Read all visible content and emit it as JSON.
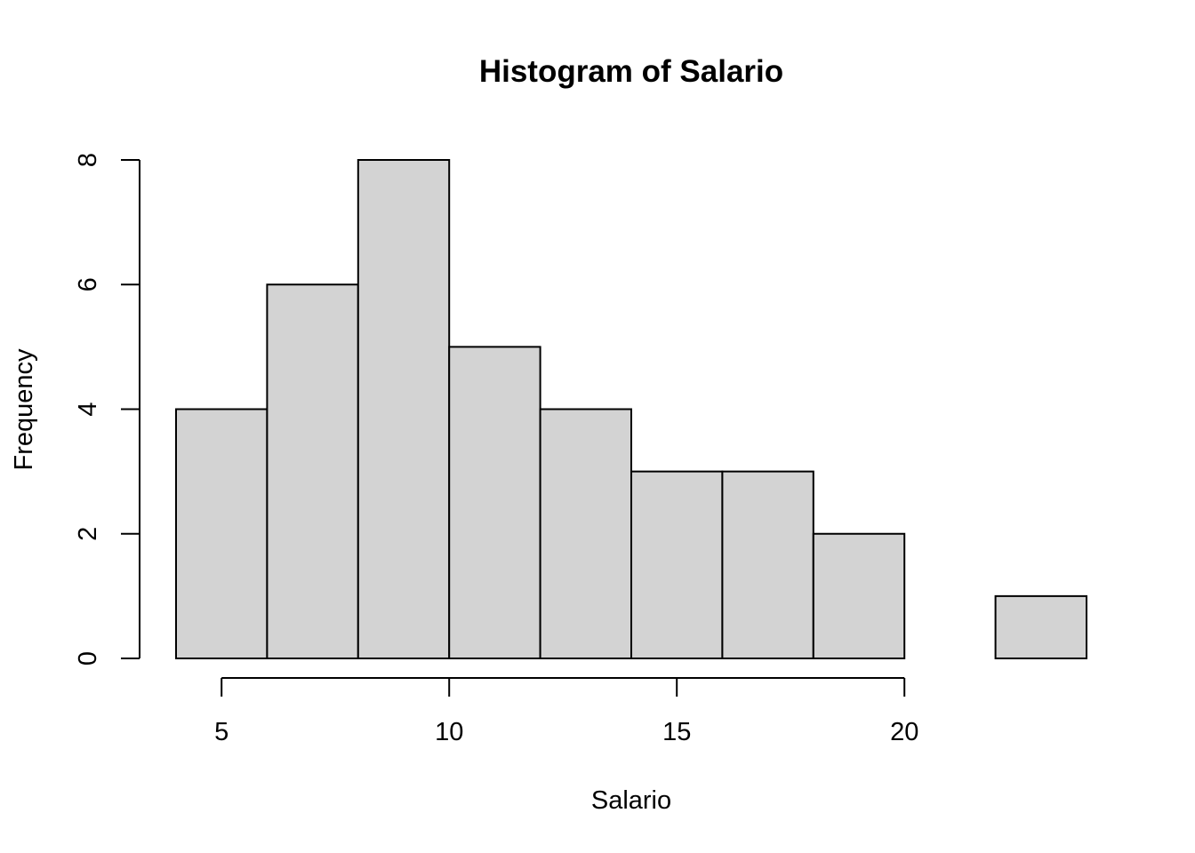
{
  "chart_data": {
    "type": "bar",
    "subtype": "histogram",
    "title": "Histogram of Salario",
    "xlabel": "Salario",
    "ylabel": "Frequency",
    "bins": [
      {
        "start": 4,
        "end": 6,
        "count": 4
      },
      {
        "start": 6,
        "end": 8,
        "count": 6
      },
      {
        "start": 8,
        "end": 10,
        "count": 8
      },
      {
        "start": 10,
        "end": 12,
        "count": 5
      },
      {
        "start": 12,
        "end": 14,
        "count": 4
      },
      {
        "start": 14,
        "end": 16,
        "count": 3
      },
      {
        "start": 16,
        "end": 18,
        "count": 3
      },
      {
        "start": 18,
        "end": 20,
        "count": 2
      },
      {
        "start": 20,
        "end": 22,
        "count": 0
      },
      {
        "start": 22,
        "end": 24,
        "count": 1
      }
    ],
    "xlim": [
      4,
      24
    ],
    "ylim": [
      0,
      8
    ],
    "x_ticks": [
      5,
      10,
      15,
      20
    ],
    "y_ticks": [
      0,
      2,
      4,
      6,
      8
    ],
    "grid": false,
    "bar_fill": "#d3d3d3",
    "bar_stroke": "#000000"
  }
}
